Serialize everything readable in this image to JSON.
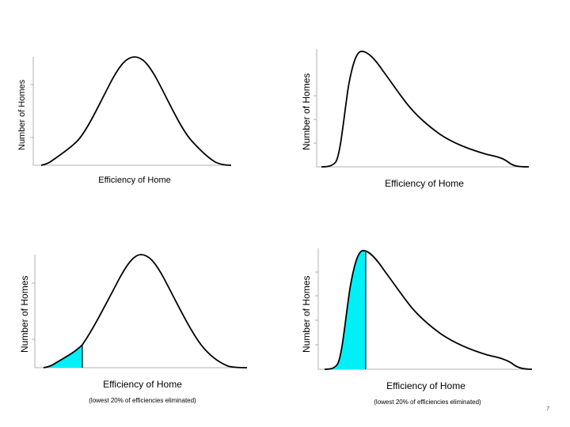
{
  "slide": {
    "page_number": "7"
  },
  "panels": [
    {
      "ylabel": "Number of Homes",
      "xlabel": "Efficiency of Home",
      "note": ""
    },
    {
      "ylabel": "Number of Homes",
      "xlabel": "Efficiency of Home",
      "note": ""
    },
    {
      "ylabel": "Number of Homes",
      "xlabel": "Efficiency of Home",
      "note": "(lowest 20% of efficiencies eliminated)"
    },
    {
      "ylabel": "Number of Homes",
      "xlabel": "Efficiency of Home",
      "note": "(lowest 20% of efficiencies eliminated)"
    }
  ],
  "colors": {
    "curve": "#000000",
    "shade": "#00f0f8",
    "axis": "#b0b0b0"
  }
}
